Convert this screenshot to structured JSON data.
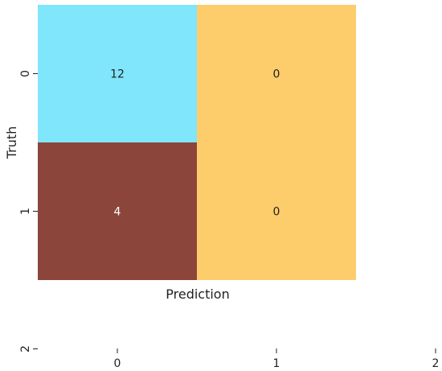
{
  "chart_data": {
    "type": "heatmap",
    "xlabel": "Prediction",
    "ylabel": "Truth",
    "x_ticks": [
      "0",
      "1",
      "2"
    ],
    "y_ticks": [
      "0",
      "1",
      "2"
    ],
    "rows": [
      "0",
      "1"
    ],
    "columns": [
      "0",
      "1"
    ],
    "values": [
      [
        12,
        0
      ],
      [
        4,
        0
      ]
    ],
    "cell_colors": [
      [
        "#7fe6fc",
        "#fccd6a"
      ],
      [
        "#8b453a",
        "#fccd6a"
      ]
    ],
    "label_colors": [
      [
        "#222222",
        "#222222"
      ],
      [
        "#ffffff",
        "#222222"
      ]
    ],
    "grid": false,
    "colorbar": false
  }
}
